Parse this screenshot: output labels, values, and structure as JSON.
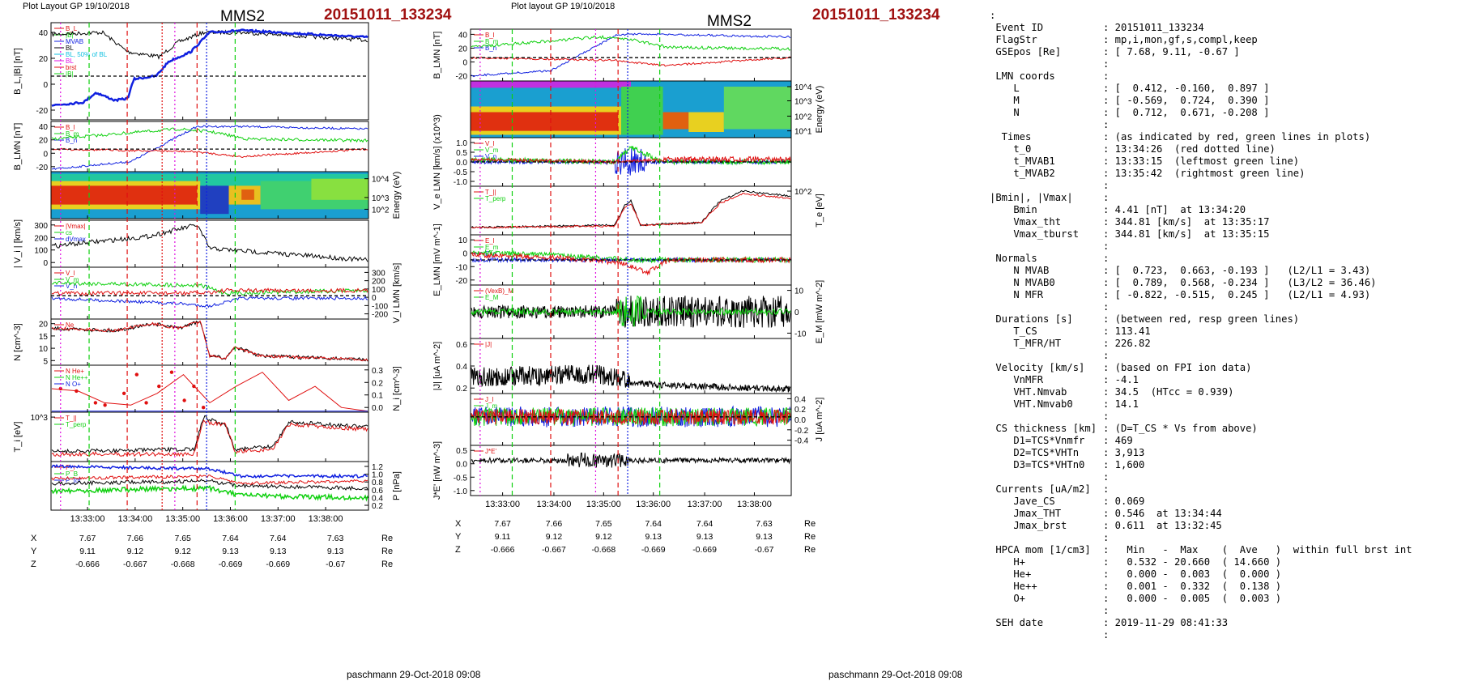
{
  "left_plot": {
    "layout_label": "Plot Layout GP 19/10/2018",
    "spacecraft": "MMS2",
    "event_id": "20151011_133234",
    "footer": "paschmann 29-Oct-2018 09:08"
  },
  "right_plot": {
    "layout_label": "Plot layout GP 19/10/2018",
    "spacecraft": "MMS2",
    "event_id": "20151011_133234",
    "footer": "paschmann 29-Oct-2018 09:08"
  },
  "colors": {
    "red": "#e01010",
    "green": "#10d010",
    "blue": "#1020e0",
    "black": "#000000",
    "magenta": "#e010e0",
    "cyan": "#10c0e0",
    "event_red": "#a01010"
  },
  "chart_data": [
    {
      "id": "left",
      "type": "line",
      "x_ticks": [
        "13:33:00",
        "13:34:00",
        "13:35:00",
        "13:36:00",
        "13:37:00",
        "13:38:00"
      ],
      "xlim_minutes": [
        13.32,
        13.38
      ],
      "position_rows": [
        {
          "label": "X",
          "values": [
            "7.67",
            "7.66",
            "7.65",
            "7.64",
            "7.64",
            "7.63"
          ],
          "unit": "Re"
        },
        {
          "label": "Y",
          "values": [
            "9.11",
            "9.12",
            "9.12",
            "9.13",
            "9.13",
            "9.13"
          ],
          "unit": "Re"
        },
        {
          "label": "Z",
          "values": [
            "-0.666",
            "-0.667",
            "-0.668",
            "-0.669",
            "-0.669",
            "-0.67"
          ],
          "unit": "Re"
        }
      ],
      "panels": [
        {
          "ylabel": "B_L,|B| [nT]",
          "y_ticks": [
            "40",
            "20",
            "0",
            "-20"
          ],
          "legend": [
            "B_L",
            "|B|",
            "MVAB",
            "BL",
            "BL, 50% of BL",
            "BL",
            "brst",
            "|B|"
          ]
        },
        {
          "ylabel": "B_LMN [nT]",
          "y_ticks": [
            "40",
            "20",
            "0",
            "-20"
          ],
          "legend": [
            "B_l",
            "B_m",
            "B_n"
          ]
        },
        {
          "ylabel": "Energy (eV)",
          "y_ticks": [
            "10^4",
            "10^3",
            "10^2"
          ],
          "type": "spectrogram"
        },
        {
          "ylabel": "| V_i | [km/s]",
          "y_ticks": [
            "300",
            "200",
            "100",
            "0"
          ],
          "legend": [
            "|Vmax|",
            "cs",
            "dVmax"
          ]
        },
        {
          "ylabel": "V_i LMN [km/s]",
          "y_ticks": [
            "300",
            "200",
            "100",
            "0",
            "-100",
            "-200"
          ],
          "legend": [
            "V_l",
            "V_m",
            "V_n"
          ]
        },
        {
          "ylabel": "N [cm^-3]",
          "y_ticks": [
            "20",
            "15",
            "10",
            "5"
          ],
          "legend": [
            "Ne"
          ]
        },
        {
          "ylabel": "N_i [cm^-3]",
          "y_ticks": [
            "0.3",
            "0.2",
            "0.1",
            "0.0"
          ],
          "legend": [
            "N He+",
            "N He++",
            "N O+"
          ]
        },
        {
          "ylabel": "T_i [eV]",
          "y_ticks": [
            "10^3"
          ],
          "legend": [
            "T_||",
            "T_perp"
          ]
        },
        {
          "ylabel": "P [nPa]",
          "y_ticks": [
            "1.2",
            "1.0",
            "0.8",
            "0.6",
            "0.4",
            "0.2"
          ],
          "legend": [
            "P_i",
            "P_B",
            "P_tot"
          ]
        }
      ]
    },
    {
      "id": "right",
      "type": "line",
      "x_ticks": [
        "13:33:00",
        "13:34:00",
        "13:35:00",
        "13:36:00",
        "13:37:00",
        "13:38:00"
      ],
      "position_rows": [
        {
          "label": "X",
          "values": [
            "7.67",
            "7.66",
            "7.65",
            "7.64",
            "7.64",
            "7.63"
          ],
          "unit": "Re"
        },
        {
          "label": "Y",
          "values": [
            "9.11",
            "9.12",
            "9.12",
            "9.13",
            "9.13",
            "9.13"
          ],
          "unit": "Re"
        },
        {
          "label": "Z",
          "values": [
            "-0.666",
            "-0.667",
            "-0.668",
            "-0.669",
            "-0.669",
            "-0.67"
          ],
          "unit": "Re"
        }
      ],
      "panels": [
        {
          "ylabel": "B_LMN [nT]",
          "y_ticks": [
            "40",
            "20",
            "0",
            "-20"
          ],
          "legend": [
            "B_l",
            "B_m",
            "B_n"
          ]
        },
        {
          "ylabel": "Energy (eV)",
          "y_ticks": [
            "10^4",
            "10^3",
            "10^2",
            "10^1"
          ],
          "type": "spectrogram"
        },
        {
          "ylabel": "V_e LMN [km/s] (x10^3)",
          "y_ticks": [
            "1.0",
            "0.5",
            "0.0",
            "-0.5",
            "-1.0"
          ],
          "legend": [
            "V_l",
            "V_m",
            "V_n"
          ]
        },
        {
          "ylabel": "T_e [eV]",
          "y_ticks": [
            "10^2"
          ],
          "legend": [
            "T_||",
            "T_perp"
          ]
        },
        {
          "ylabel": "E_LMN [mV m^-1]",
          "y_ticks": [
            "10",
            "0",
            "-10",
            "-20"
          ],
          "legend": [
            "E_l",
            "E_m",
            "E_n"
          ]
        },
        {
          "ylabel": "E_M [mW m^-2]",
          "y_ticks": [
            "10",
            "0",
            "-10"
          ],
          "legend": [
            "(VexB)_M",
            "E_M"
          ]
        },
        {
          "ylabel": "|J| [uA m^-2]",
          "y_ticks": [
            "0.6",
            "0.4",
            "0.2"
          ],
          "legend": [
            "|J|"
          ]
        },
        {
          "ylabel": "J [uA m^-2]",
          "y_ticks": [
            "0.4",
            "0.2",
            "0.0",
            "-0.2",
            "-0.4"
          ],
          "legend": [
            "J_l",
            "J_m",
            "J_n"
          ]
        },
        {
          "ylabel": "J*E' [nW m^-3]",
          "y_ticks": [
            "0.5",
            "0.0",
            "-0.5",
            "-1.0"
          ],
          "legend": [
            "J*E'"
          ]
        }
      ]
    }
  ],
  "info_panel": {
    "top_colon": ":",
    "lines": [
      {
        "k": " Event ID",
        "v": ": 20151011_133234"
      },
      {
        "k": " FlagStr",
        "v": ": mp,i,mon,gf,s,compl,keep"
      },
      {
        "k": " GSEpos [Re]",
        "v": ": [ 7.68, 9.11, -0.67 ]"
      },
      {
        "k": "",
        "v": ":"
      },
      {
        "k": " LMN coords",
        "v": ":"
      },
      {
        "k": "    L",
        "v": ": [  0.412, -0.160,  0.897 ]"
      },
      {
        "k": "    M",
        "v": ": [ -0.569,  0.724,  0.390 ]"
      },
      {
        "k": "    N",
        "v": ": [  0.712,  0.671, -0.208 ]"
      },
      {
        "k": "",
        "v": ":"
      },
      {
        "k": "  Times",
        "v": ": (as indicated by red, green lines in plots)"
      },
      {
        "k": "    t_0",
        "v": ": 13:34:26  (red dotted line)"
      },
      {
        "k": "    t_MVAB1",
        "v": ": 13:33:15  (leftmost green line)"
      },
      {
        "k": "    t_MVAB2",
        "v": ": 13:35:42  (rightmost green line)"
      },
      {
        "k": "",
        "v": ":"
      },
      {
        "k": "|Bmin|, |Vmax|",
        "v": ":"
      },
      {
        "k": "    Bmin",
        "v": ": 4.41 [nT]  at 13:34:20"
      },
      {
        "k": "    Vmax_tht",
        "v": ": 344.81 [km/s]  at 13:35:17"
      },
      {
        "k": "    Vmax_tburst",
        "v": ": 344.81 [km/s]  at 13:35:15"
      },
      {
        "k": "",
        "v": ":"
      },
      {
        "k": " Normals",
        "v": ":"
      },
      {
        "k": "    N MVAB",
        "v": ": [  0.723,  0.663, -0.193 ]   (L2/L1 = 3.43)"
      },
      {
        "k": "    N MVAB0",
        "v": ": [  0.789,  0.568, -0.234 ]   (L3/L2 = 36.46)"
      },
      {
        "k": "    N MFR",
        "v": ": [ -0.822, -0.515,  0.245 ]   (L2/L1 = 4.93)"
      },
      {
        "k": "",
        "v": ":"
      },
      {
        "k": " Durations [s]",
        "v": ": (between red, resp green lines)"
      },
      {
        "k": "    T_CS",
        "v": ": 113.41"
      },
      {
        "k": "    T_MFR/HT",
        "v": ": 226.82"
      },
      {
        "k": "",
        "v": ":"
      },
      {
        "k": " Velocity [km/s]",
        "v": ": (based on FPI ion data)"
      },
      {
        "k": "    VnMFR",
        "v": ": -4.1"
      },
      {
        "k": "    VHT.Nmvab",
        "v": ": 34.5  (HTcc = 0.939)"
      },
      {
        "k": "    VHT.Nmvab0",
        "v": ": 14.1"
      },
      {
        "k": "",
        "v": ":"
      },
      {
        "k": " CS thickness [km]",
        "v": ": (D=T_CS * Vs from above)"
      },
      {
        "k": "    D1=TCS*Vnmfr",
        "v": ": 469"
      },
      {
        "k": "    D2=TCS*VHTn",
        "v": ": 3,913"
      },
      {
        "k": "    D3=TCS*VHTn0",
        "v": ": 1,600"
      },
      {
        "k": "",
        "v": ":"
      },
      {
        "k": " Currents [uA/m2]",
        "v": ":"
      },
      {
        "k": "    Jave_CS",
        "v": ": 0.069"
      },
      {
        "k": "    Jmax_THT",
        "v": ": 0.546  at 13:34:44"
      },
      {
        "k": "    Jmax_brst",
        "v": ": 0.611  at 13:32:45"
      },
      {
        "k": "",
        "v": ":"
      },
      {
        "k": " HPCA mom [1/cm3]",
        "v": ":   Min   -  Max    (  Ave   )  within full brst int"
      },
      {
        "k": "    H+",
        "v": ":   0.532 - 20.660  ( 14.660 )"
      },
      {
        "k": "    He+",
        "v": ":   0.000 -  0.003  (  0.000 )"
      },
      {
        "k": "    He++",
        "v": ":   0.001 -  0.332  (  0.138 )"
      },
      {
        "k": "    O+",
        "v": ":   0.000 -  0.005  (  0.003 )"
      },
      {
        "k": "",
        "v": ":"
      },
      {
        "k": " SEH date",
        "v": ": 2019-11-29 08:41:33"
      },
      {
        "k": "",
        "v": ":"
      }
    ]
  }
}
